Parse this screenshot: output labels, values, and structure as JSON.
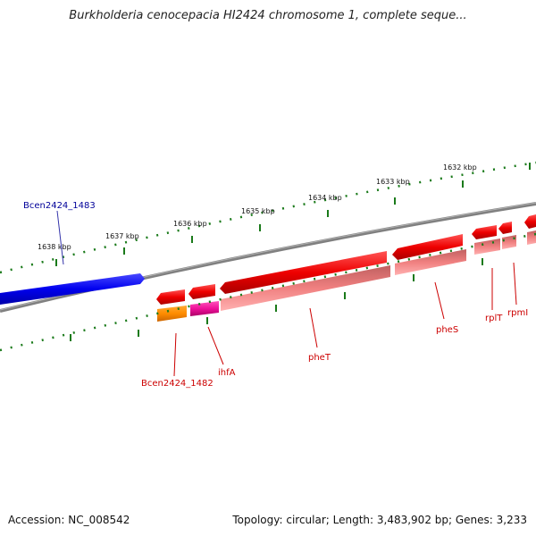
{
  "title": "Burkholderia cenocepacia HI2424 chromosome 1, complete seque...",
  "footer": {
    "accession": "Accession: NC_008542",
    "summary": "Topology: circular; Length: 3,483,902 bp; Genes: 3,233"
  },
  "ruler": {
    "ticks": [
      "1638 kbp",
      "1637 kbp",
      "1636 kbp",
      "1635 kbp",
      "1634 kbp",
      "1633 kbp",
      "1632 kbp"
    ],
    "color": "#1a7a1a"
  },
  "backbone_color": "#808080",
  "colors": {
    "forward_gene": "#0000ee",
    "reverse_gene": "#ee0000",
    "reverse_cds": "#f08080",
    "trna_like_orange": "#ff8c00",
    "magenta": "#ee1199",
    "label_forward": "#000099",
    "label_reverse": "#cc0000"
  },
  "genes": {
    "bcen2424_1483": "Bcen2424_1483",
    "bcen2424_1482": "Bcen2424_1482",
    "ihfa": "ihfA",
    "phet": "pheT",
    "phes": "pheS",
    "rplt": "rplT",
    "rpmi": "rpmI"
  }
}
